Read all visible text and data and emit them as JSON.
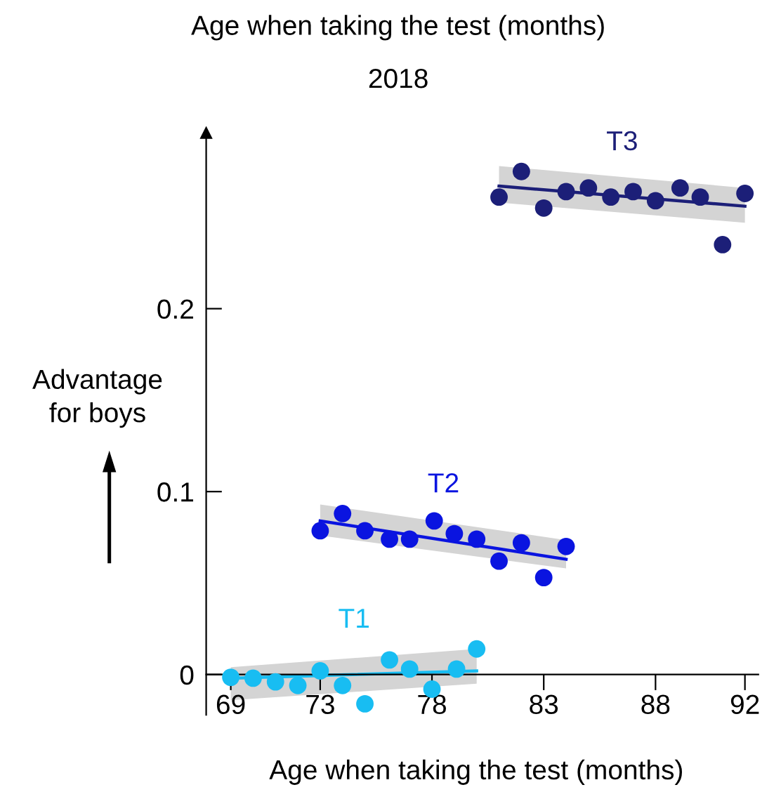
{
  "chart_data": {
    "type": "scatter",
    "title": "Age when taking the test (months)",
    "subtitle": "2018",
    "xlabel": "Age when taking the test (months)",
    "ylabel": "Advantage\nfor boys",
    "xlim": [
      67.9,
      92.6
    ],
    "xticks": [
      69,
      73,
      78,
      83,
      88,
      92
    ],
    "ylim": [
      -0.022,
      0.296
    ],
    "yticks": [
      0,
      0.1,
      0.2
    ],
    "grid": false,
    "legend": false,
    "series": [
      {
        "name": "T1",
        "marker": "circle",
        "color": "#18bdf2",
        "x": [
          69,
          70,
          71,
          72,
          73,
          74,
          75,
          76.1,
          77,
          78,
          79.1,
          80
        ],
        "values": [
          -0.0015,
          -0.002,
          -0.004,
          -0.006,
          0.002,
          -0.006,
          -0.016,
          0.008,
          0.003,
          -0.008,
          0.003,
          0.014
        ]
      },
      {
        "type": "line",
        "color": "#18bdf2",
        "x": [
          69,
          80
        ],
        "values": [
          -0.002,
          0.002
        ],
        "lower": [
          -0.014,
          -0.005
        ],
        "upper": [
          0.004,
          0.014
        ]
      },
      {
        "name": "T2",
        "marker": "circle",
        "color": "#0a14e0",
        "x": [
          73,
          74,
          75,
          76.1,
          77,
          78.1,
          79,
          80,
          81,
          82,
          83,
          84
        ],
        "values": [
          0.0786,
          0.088,
          0.0786,
          0.074,
          0.074,
          0.084,
          0.077,
          0.074,
          0.062,
          0.072,
          0.053,
          0.07
        ]
      },
      {
        "type": "line",
        "color": "#0a14e0",
        "x": [
          73,
          84
        ],
        "values": [
          0.084,
          0.063
        ],
        "lower": [
          0.076,
          0.058
        ],
        "upper": [
          0.093,
          0.0735
        ]
      },
      {
        "name": "T3",
        "marker": "circle",
        "color": "#1c1f78",
        "x": [
          81,
          82,
          83,
          84,
          85,
          86,
          87,
          88,
          89.1,
          90,
          91,
          92
        ],
        "values": [
          0.261,
          0.275,
          0.255,
          0.264,
          0.266,
          0.261,
          0.264,
          0.259,
          0.266,
          0.261,
          0.235,
          0.263
        ]
      },
      {
        "type": "line",
        "color": "#1c1f78",
        "x": [
          81,
          92
        ],
        "values": [
          0.267,
          0.256
        ],
        "lower": [
          0.258,
          0.247
        ],
        "upper": [
          0.278,
          0.266
        ]
      }
    ]
  }
}
